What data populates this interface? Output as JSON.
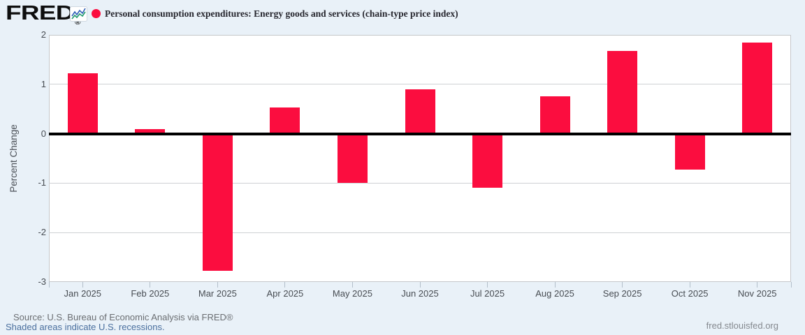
{
  "header": {
    "logo_text": "FRED",
    "logo_registered": "®",
    "series_title": "Personal consumption expenditures: Energy goods and services (chain-type price index)"
  },
  "chart_data": {
    "type": "bar",
    "title": "Personal consumption expenditures: Energy goods and services (chain-type price index)",
    "ylabel": "Percent Change",
    "xlabel": "",
    "categories": [
      "Jan 2025",
      "Feb 2025",
      "Mar 2025",
      "Apr 2025",
      "May 2025",
      "Jun 2025",
      "Jul 2025",
      "Aug 2025",
      "Sep 2025",
      "Oct 2025",
      "Nov 2025"
    ],
    "values": [
      1.22,
      0.09,
      -2.78,
      0.53,
      -0.99,
      0.9,
      -1.1,
      0.76,
      1.67,
      -0.72,
      1.84
    ],
    "ylim": [
      -3,
      2
    ],
    "yticks": [
      2,
      1,
      0,
      -1,
      -2,
      -3
    ],
    "grid": true,
    "zero_line": true,
    "legend_position": "top-left",
    "bar_color": "#fb0d3f"
  },
  "colors": {
    "background": "#e9f1f8",
    "plot_background": "#ffffff",
    "bar": "#fb0d3f",
    "legend_dot": "#fb0d3f",
    "gridline": "#cfd1d4",
    "plot_border": "#c5c7ca",
    "zero_line": "#000000",
    "axis_text": "#474c52",
    "title_text": "#26262e",
    "source_text": "#6b6e72",
    "link_blue": "#4a6f9e",
    "url_text": "#85898f",
    "logo_icon_line1": "#2e5fb7",
    "logo_icon_line2": "#1f9a6d"
  },
  "footer": {
    "source_line": "Source: U.S. Bureau of Economic Analysis via FRED®",
    "recession_note": "Shaded areas indicate U.S. recessions.",
    "site_url": "fred.stlouisfed.org"
  }
}
